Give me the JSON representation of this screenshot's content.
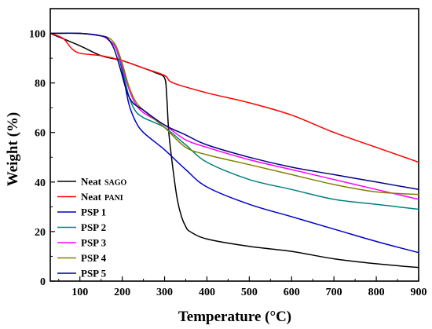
{
  "chart_data": {
    "type": "line",
    "xlabel": "Temperature (°C)",
    "ylabel": "Weight (%)",
    "xlim": [
      30,
      900
    ],
    "ylim": [
      0,
      110
    ],
    "xticks": [
      100,
      200,
      300,
      400,
      500,
      600,
      700,
      800,
      900
    ],
    "yticks": [
      0,
      20,
      40,
      60,
      80,
      100
    ],
    "grid": false,
    "legend_position": "bottom-left",
    "series": [
      {
        "name": "Neat SAGO",
        "name_main": "Neat",
        "name_sub": "SAGO",
        "color": "#000000",
        "x": [
          30,
          100,
          150,
          200,
          250,
          280,
          300,
          305,
          310,
          320,
          330,
          340,
          350,
          360,
          400,
          500,
          600,
          700,
          800,
          900
        ],
        "y": [
          100,
          95,
          91,
          89,
          86,
          84,
          82,
          75,
          60,
          45,
          33,
          26,
          22,
          20,
          17,
          14,
          12,
          9,
          7,
          5.5
        ]
      },
      {
        "name": "Neat PANI",
        "name_main": "Neat",
        "name_sub": "PANI",
        "color": "#ff0000",
        "x": [
          30,
          60,
          80,
          100,
          150,
          200,
          250,
          300,
          320,
          400,
          500,
          600,
          700,
          800,
          900
        ],
        "y": [
          100,
          98,
          94,
          92,
          91,
          89,
          86,
          83,
          80,
          76,
          72,
          67,
          60,
          54,
          48
        ]
      },
      {
        "name": "PSP 1",
        "name_main": "PSP 1",
        "name_sub": "",
        "color": "#0000cc",
        "x": [
          30,
          100,
          150,
          170,
          185,
          200,
          215,
          230,
          250,
          300,
          350,
          400,
          500,
          600,
          700,
          800,
          900
        ],
        "y": [
          100,
          100,
          99,
          97,
          94,
          85,
          72,
          65,
          60,
          53,
          45,
          38,
          31,
          26,
          21,
          16,
          11.5
        ]
      },
      {
        "name": "PSP 2",
        "name_main": "PSP 2",
        "name_sub": "",
        "color": "#008080",
        "x": [
          30,
          100,
          150,
          170,
          185,
          200,
          215,
          230,
          250,
          300,
          350,
          400,
          500,
          600,
          700,
          800,
          900
        ],
        "y": [
          100,
          100,
          99,
          97,
          94,
          86,
          75,
          69,
          66,
          62,
          55,
          48,
          41,
          37,
          33,
          31,
          29
        ]
      },
      {
        "name": "PSP 3",
        "name_main": "PSP 3",
        "name_sub": "",
        "color": "#ff00ff",
        "x": [
          30,
          100,
          150,
          170,
          185,
          200,
          215,
          230,
          250,
          300,
          350,
          400,
          500,
          600,
          700,
          800,
          900
        ],
        "y": [
          100,
          100,
          99,
          97,
          94,
          87,
          78,
          72,
          68,
          63,
          57,
          54,
          49,
          45,
          41,
          37,
          33
        ]
      },
      {
        "name": "PSP 4",
        "name_main": "PSP 4",
        "name_sub": "",
        "color": "#808000",
        "x": [
          30,
          100,
          150,
          170,
          185,
          200,
          215,
          230,
          250,
          300,
          350,
          400,
          500,
          600,
          700,
          800,
          900
        ],
        "y": [
          100,
          100,
          99,
          98,
          95,
          88,
          79,
          73,
          69,
          62,
          54,
          51,
          47,
          43,
          39,
          36,
          35
        ]
      },
      {
        "name": "PSP 5",
        "name_main": "PSP 5",
        "name_sub": "",
        "color": "#000080",
        "x": [
          30,
          100,
          150,
          165,
          180,
          195,
          210,
          225,
          250,
          300,
          350,
          400,
          500,
          600,
          700,
          800,
          900
        ],
        "y": [
          100,
          100,
          99,
          98,
          94,
          86,
          77,
          72,
          69,
          63,
          59,
          55,
          50,
          46,
          43,
          40,
          37
        ]
      }
    ]
  }
}
